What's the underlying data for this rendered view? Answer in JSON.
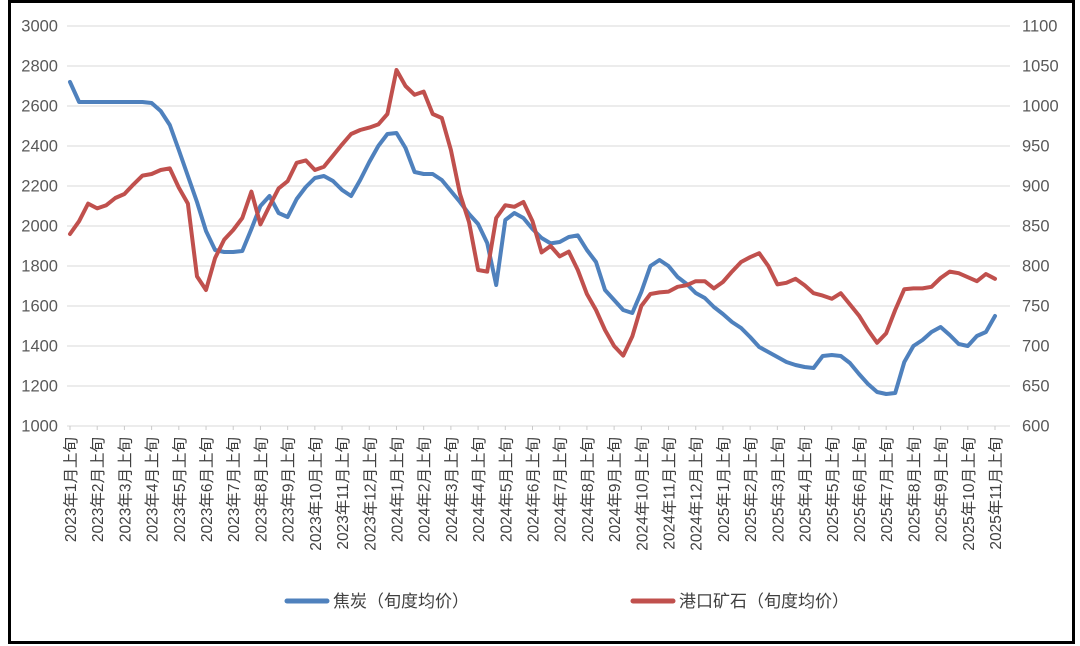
{
  "chart_data": {
    "type": "line",
    "title": "",
    "grid": "horizontal",
    "legend_position": "bottom",
    "frame_color": "#000000",
    "gridline_color": "#d9d9d9",
    "axis_text_color": "#595959",
    "x_axis": {
      "points_per_label": 3,
      "tick_labels": [
        "2023年1月上旬",
        "2023年2月上旬",
        "2023年3月上旬",
        "2023年4月上旬",
        "2023年5月上旬",
        "2023年6月上旬",
        "2023年7月上旬",
        "2023年8月上旬",
        "2023年9月上旬",
        "2023年10月上旬",
        "2023年11月上旬",
        "2023年12月上旬",
        "2024年1月上旬",
        "2024年2月上旬",
        "2024年3月上旬",
        "2024年4月上旬",
        "2024年5月上旬",
        "2024年6月上旬",
        "2024年7月上旬",
        "2024年8月上旬",
        "2024年9月上旬",
        "2024年10月上旬",
        "2024年11月上旬",
        "2024年12月上旬",
        "2025年1月上旬",
        "2025年2月上旬",
        "2025年3月上旬",
        "2025年4月上旬",
        "2025年5月上旬",
        "2025年6月上旬",
        "2025年7月上旬",
        "2025年8月上旬",
        "2025年9月上旬",
        "2025年10月上旬",
        "2025年11月上旬"
      ]
    },
    "left_axis": {
      "min": 1000,
      "max": 3000,
      "step": 200,
      "tick_labels": [
        "3000",
        "2800",
        "2600",
        "2400",
        "2200",
        "2000",
        "1800",
        "1600",
        "1400",
        "1200",
        "1000"
      ]
    },
    "right_axis": {
      "min": 600,
      "max": 1100,
      "step": 50,
      "tick_labels": [
        "1100",
        "1050",
        "1000",
        "950",
        "900",
        "850",
        "800",
        "750",
        "700",
        "650",
        "600"
      ]
    },
    "series": [
      {
        "name": "焦炭（旬度均价）",
        "axis": "left",
        "color": "#4f81bd",
        "values": [
          2720,
          2620,
          2620,
          2620,
          2620,
          2620,
          2620,
          2620,
          2620,
          2615,
          2575,
          2505,
          2380,
          2250,
          2120,
          1975,
          1880,
          1870,
          1870,
          1875,
          1985,
          2100,
          2150,
          2065,
          2045,
          2135,
          2195,
          2240,
          2250,
          2225,
          2180,
          2150,
          2230,
          2320,
          2400,
          2460,
          2465,
          2390,
          2270,
          2260,
          2260,
          2230,
          2175,
          2120,
          2060,
          2010,
          1915,
          1705,
          2030,
          2065,
          2040,
          1985,
          1940,
          1913,
          1920,
          1945,
          1953,
          1880,
          1820,
          1680,
          1630,
          1580,
          1565,
          1670,
          1800,
          1830,
          1800,
          1745,
          1710,
          1665,
          1640,
          1595,
          1560,
          1520,
          1490,
          1445,
          1395,
          1370,
          1345,
          1320,
          1305,
          1295,
          1290,
          1350,
          1355,
          1350,
          1315,
          1260,
          1210,
          1170,
          1160,
          1165,
          1320,
          1400,
          1430,
          1470,
          1495,
          1455,
          1410,
          1400,
          1450,
          1470,
          1550
        ]
      },
      {
        "name": "港口矿石（旬度均价）",
        "axis": "right",
        "color": "#c0504d",
        "values": [
          840,
          856,
          878,
          872,
          876,
          885,
          890,
          902,
          913,
          915,
          920,
          922,
          898,
          878,
          787,
          770,
          810,
          833,
          845,
          860,
          893,
          852,
          875,
          897,
          906,
          929,
          932,
          920,
          924,
          938,
          952,
          965,
          970,
          973,
          977,
          990,
          1045,
          1025,
          1014,
          1018,
          990,
          985,
          945,
          890,
          855,
          795,
          793,
          860,
          876,
          874,
          880,
          856,
          817,
          825,
          812,
          818,
          795,
          765,
          745,
          720,
          700,
          688,
          712,
          750,
          765,
          767,
          768,
          774,
          776,
          781,
          781,
          772,
          780,
          793,
          805,
          811,
          816,
          800,
          777,
          779,
          784,
          776,
          766,
          763,
          759,
          766,
          752,
          738,
          720,
          704,
          716,
          745,
          771,
          772,
          772,
          774,
          785,
          793,
          791,
          786,
          781,
          790,
          784
        ]
      }
    ]
  }
}
